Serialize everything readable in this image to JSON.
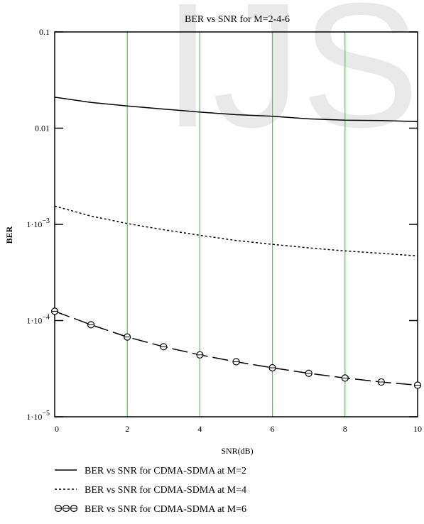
{
  "chart_data": {
    "type": "line",
    "title": "BER vs SNR for M=2-4-6",
    "xlabel": "SNR(dB)",
    "ylabel": "BER",
    "x_scale": "linear",
    "y_scale": "log",
    "xlim": [
      0,
      10
    ],
    "ylim": [
      1e-05,
      0.1
    ],
    "x_ticks": [
      "0",
      "2",
      "4",
      "6",
      "8",
      "10"
    ],
    "y_ticks": [
      {
        "value": 0.1,
        "mantissa": "0.1",
        "exp": ""
      },
      {
        "value": 0.01,
        "mantissa": "0.01",
        "exp": ""
      },
      {
        "value": 0.001,
        "mantissa": "1·10",
        "exp": "−3"
      },
      {
        "value": 0.0001,
        "mantissa": "1·10",
        "exp": "−4"
      },
      {
        "value": 1e-05,
        "mantissa": "1·10",
        "exp": "−5"
      }
    ],
    "grid": {
      "vertical": true,
      "horizontal": false,
      "color": "#33dd33"
    },
    "background_watermark": "IJS",
    "legend_position": "bottom",
    "series": [
      {
        "name": "BER vs SNR for CDMA-SDMA at M=2",
        "style": "solid",
        "x": [
          0,
          1,
          2,
          3,
          4,
          5,
          6,
          7,
          8,
          9,
          10
        ],
        "values": [
          0.021,
          0.0185,
          0.017,
          0.0158,
          0.0147,
          0.0138,
          0.0133,
          0.0125,
          0.0121,
          0.012,
          0.0117
        ]
      },
      {
        "name": "BER vs SNR for CDMA-SDMA at M=4",
        "style": "dotted",
        "x": [
          0,
          1,
          2,
          3,
          4,
          5,
          6,
          7,
          8,
          9,
          10
        ],
        "values": [
          0.00155,
          0.00122,
          0.00102,
          0.00088,
          0.00077,
          0.00068,
          0.00062,
          0.00057,
          0.00053,
          0.0005,
          0.00047
        ]
      },
      {
        "name": "BER vs SNR for CDMA-SDMA at M=6",
        "style": "dashed-circles",
        "x": [
          0,
          1,
          2,
          3,
          4,
          5,
          6,
          7,
          8,
          9,
          10
        ],
        "values": [
          0.000125,
          9.05e-05,
          6.75e-05,
          5.35e-05,
          4.4e-05,
          3.73e-05,
          3.23e-05,
          2.83e-05,
          2.53e-05,
          2.3e-05,
          2.13e-05
        ]
      }
    ],
    "colors": {
      "axis": "#000000",
      "grid": "#33dd33",
      "series": "#000000",
      "watermark": "#e9e9e9"
    }
  }
}
